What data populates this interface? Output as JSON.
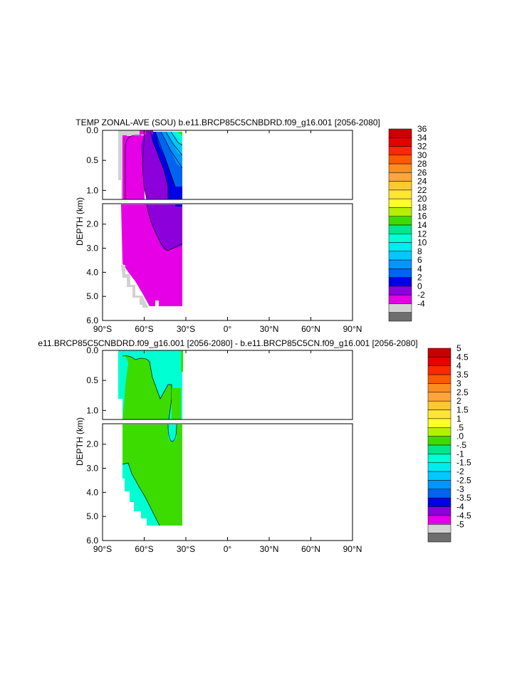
{
  "chart_data": [
    {
      "type": "heatmap",
      "panel": "top",
      "title": "TEMP ZONAL-AVE (SOU) b.e11.BRCP85C5CNBDRD.f09_g16.001 [2056-2080]",
      "ylabel": "DEPTH (km)",
      "xlabel": "",
      "x_ticks": [
        "90°S",
        "60°S",
        "30°S",
        "0°",
        "30°N",
        "60°N",
        "90°N"
      ],
      "xlim": [
        -90,
        90
      ],
      "upper_yticks": [
        "0.0",
        "0.5",
        "1.0"
      ],
      "lower_yticks": [
        "2.0",
        "3.0",
        "4.0",
        "5.0",
        "6.0"
      ],
      "ylim_upper_km": [
        0,
        1.15
      ],
      "ylim_lower_km": [
        1.15,
        6.0
      ],
      "data_lat_range": [
        -78,
        -34
      ],
      "colorbar_levels": [
        "36",
        "34",
        "32",
        "30",
        "28",
        "26",
        "24",
        "22",
        "20",
        "18",
        "16",
        "14",
        "12",
        "10",
        "8",
        "6",
        "4",
        "2",
        "0",
        "-2",
        "-4"
      ],
      "colorbar_colors": [
        "#c80000",
        "#e60000",
        "#ff2800",
        "#ff5a00",
        "#ff8c1e",
        "#ffa53c",
        "#ffc832",
        "#ffe632",
        "#ffff28",
        "#b4f000",
        "#3cdc00",
        "#00e68c",
        "#00ffd2",
        "#00ebf0",
        "#00c8ff",
        "#0096ff",
        "#0064f0",
        "#0000e6",
        "#8c00dc",
        "#e600e6",
        "#d2d2d2",
        "#6e6e6e"
      ]
    },
    {
      "type": "heatmap",
      "panel": "bottom",
      "title": "e11.BRCP85C5CNBDRD.f09_g16.001 [2056-2080] - b.e11.BRCP85C5CN.f09_g16.001 [2056-2080]",
      "ylabel": "DEPTH (km)",
      "xlabel": "",
      "x_ticks": [
        "90°S",
        "60°S",
        "30°S",
        "0°",
        "30°N",
        "60°N",
        "90°N"
      ],
      "xlim": [
        -90,
        90
      ],
      "upper_yticks": [
        "0.0",
        "0.5",
        "1.0"
      ],
      "lower_yticks": [
        "2.0",
        "3.0",
        "4.0",
        "5.0",
        "6.0"
      ],
      "ylim_upper_km": [
        0,
        1.15
      ],
      "ylim_lower_km": [
        1.15,
        6.0
      ],
      "data_lat_range": [
        -78,
        -34
      ],
      "colorbar_levels": [
        "5",
        "4.5",
        "4",
        "3.5",
        "3",
        "2.5",
        "2",
        "1.5",
        "1",
        ".5",
        ".0",
        "-.5",
        "-1",
        "-1.5",
        "-2",
        "-2.5",
        "-3",
        "-3.5",
        "-4",
        "-4.5",
        "-5"
      ],
      "colorbar_colors": [
        "#c80000",
        "#e60000",
        "#ff2800",
        "#ff5a00",
        "#ff8c1e",
        "#ffa53c",
        "#ffc832",
        "#ffe632",
        "#ffff28",
        "#b4f000",
        "#3cdc00",
        "#00e68c",
        "#00ffd2",
        "#00ebf0",
        "#00c8ff",
        "#0096ff",
        "#0064f0",
        "#0000e6",
        "#8c00dc",
        "#e600e6",
        "#d2d2d2",
        "#6e6e6e"
      ]
    }
  ]
}
